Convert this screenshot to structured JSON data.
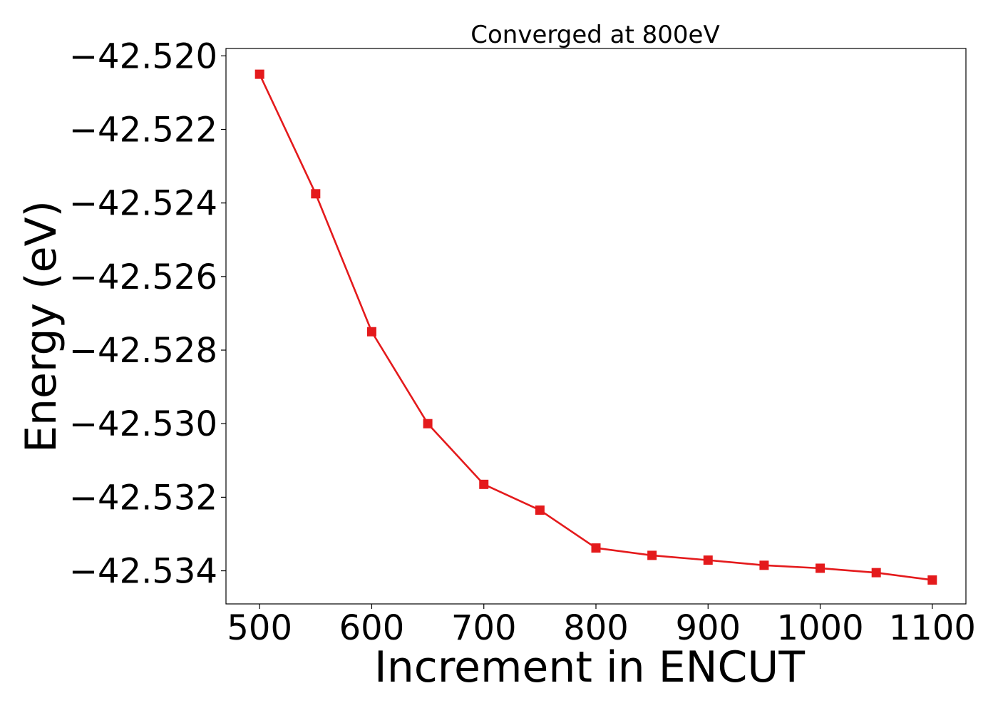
{
  "chart_data": {
    "type": "line",
    "title": "Converged at 800eV",
    "xlabel": "Increment in ENCUT",
    "ylabel": "Energy (eV)",
    "x": [
      500,
      550,
      600,
      650,
      700,
      750,
      800,
      850,
      900,
      950,
      1000,
      1050,
      1100
    ],
    "series": [
      {
        "color": "#e41a1c",
        "marker": "square",
        "values": [
          -42.5205,
          -42.52375,
          -42.5275,
          -42.53,
          -42.53165,
          -42.53235,
          -42.53338,
          -42.53358,
          -42.53371,
          -42.53385,
          -42.53393,
          -42.53405,
          -42.53425
        ]
      }
    ],
    "xticks": [
      500,
      600,
      700,
      800,
      900,
      1000,
      1100
    ],
    "xtick_labels": [
      "500",
      "600",
      "700",
      "800",
      "900",
      "1000",
      "1100"
    ],
    "yticks": [
      -42.52,
      -42.522,
      -42.524,
      -42.526,
      -42.528,
      -42.53,
      -42.532,
      -42.534
    ],
    "ytick_labels": [
      "−42.520",
      "−42.522",
      "−42.524",
      "−42.526",
      "−42.528",
      "−42.530",
      "−42.532",
      "−42.534"
    ],
    "xlim": [
      470,
      1130
    ],
    "ylim": [
      -42.5349,
      -42.5198
    ],
    "grid": false,
    "legend": false
  }
}
